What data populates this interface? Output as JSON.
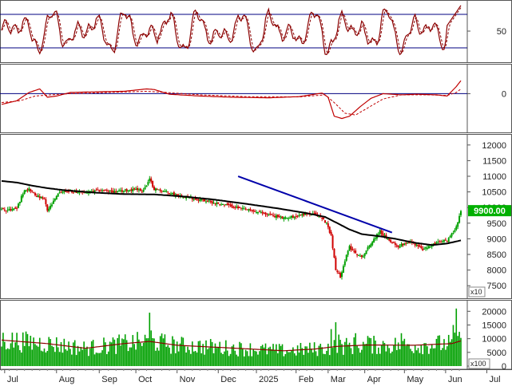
{
  "chart_data": [
    {
      "type": "line",
      "panel": "stochastic",
      "ylim": [
        0,
        100
      ],
      "yticks": [
        {
          "value": 50,
          "label": "50"
        }
      ],
      "reference_lines": [
        80,
        20
      ],
      "n_points": 260,
      "line_color": "#8b0000",
      "signal_color": "#8b0000",
      "ref_line_color": "#000080"
    },
    {
      "type": "line",
      "panel": "macd",
      "ylim": [
        -600,
        450
      ],
      "yticks": [
        {
          "value": 0,
          "label": "0"
        }
      ],
      "zero_line": 0,
      "macd_color": "#c00000",
      "signal_color": "#c00000"
    },
    {
      "type": "candlestick",
      "panel": "price",
      "ylim": [
        7200,
        12250
      ],
      "yticks": [
        {
          "value": 12000,
          "label": "12000"
        },
        {
          "value": 11500,
          "label": "11500"
        },
        {
          "value": 11000,
          "label": "11000"
        },
        {
          "value": 10500,
          "label": "10500"
        },
        {
          "value": 10000,
          "label": "10000"
        },
        {
          "value": 9500,
          "label": "9500"
        },
        {
          "value": 9000,
          "label": "9000"
        },
        {
          "value": 8500,
          "label": "8500"
        },
        {
          "value": 8000,
          "label": "8000"
        },
        {
          "value": 7500,
          "label": "7500"
        }
      ],
      "last_price_label": "9900.00",
      "unit_label": "x10",
      "up_color": "#00a000",
      "down_color": "#d00000",
      "ma_color": "#000000",
      "trendline_color": "#0000aa",
      "trendline": {
        "start": {
          "x": 155,
          "y": 11000
        },
        "end": {
          "x": 259,
          "y": 9200
        }
      },
      "price_path": [
        [
          0,
          9950
        ],
        [
          5,
          9920
        ],
        [
          10,
          9980
        ],
        [
          15,
          10580
        ],
        [
          18,
          10600
        ],
        [
          22,
          10400
        ],
        [
          28,
          10250
        ],
        [
          30,
          9900
        ],
        [
          33,
          10100
        ],
        [
          38,
          10500
        ],
        [
          45,
          10520
        ],
        [
          55,
          10480
        ],
        [
          65,
          10550
        ],
        [
          75,
          10500
        ],
        [
          82,
          10550
        ],
        [
          88,
          10600
        ],
        [
          92,
          10520
        ],
        [
          95,
          10700
        ],
        [
          97,
          10900
        ],
        [
          100,
          10600
        ],
        [
          108,
          10500
        ],
        [
          115,
          10400
        ],
        [
          125,
          10300
        ],
        [
          135,
          10200
        ],
        [
          145,
          10100
        ],
        [
          150,
          10050
        ],
        [
          158,
          9950
        ],
        [
          168,
          9850
        ],
        [
          178,
          9750
        ],
        [
          185,
          9650
        ],
        [
          192,
          9720
        ],
        [
          200,
          9800
        ],
        [
          205,
          9780
        ],
        [
          209,
          9700
        ],
        [
          213,
          9500
        ],
        [
          216,
          9100
        ],
        [
          219,
          8000
        ],
        [
          222,
          7800
        ],
        [
          225,
          8300
        ],
        [
          228,
          8750
        ],
        [
          232,
          8550
        ],
        [
          236,
          8400
        ],
        [
          240,
          8700
        ],
        [
          244,
          9000
        ],
        [
          248,
          9250
        ],
        [
          252,
          9000
        ],
        [
          256,
          8900
        ],
        [
          260,
          8750
        ],
        [
          264,
          8850
        ],
        [
          268,
          8900
        ],
        [
          272,
          8800
        ],
        [
          276,
          8650
        ],
        [
          280,
          8750
        ],
        [
          284,
          8850
        ],
        [
          288,
          8900
        ],
        [
          292,
          8950
        ],
        [
          296,
          9200
        ],
        [
          299,
          9550
        ],
        [
          301,
          9900
        ]
      ],
      "ma_path": [
        [
          0,
          10850
        ],
        [
          10,
          10800
        ],
        [
          20,
          10700
        ],
        [
          30,
          10620
        ],
        [
          40,
          10560
        ],
        [
          60,
          10480
        ],
        [
          80,
          10430
        ],
        [
          100,
          10420
        ],
        [
          120,
          10350
        ],
        [
          140,
          10250
        ],
        [
          160,
          10120
        ],
        [
          180,
          9980
        ],
        [
          200,
          9820
        ],
        [
          212,
          9700
        ],
        [
          220,
          9500
        ],
        [
          228,
          9300
        ],
        [
          236,
          9150
        ],
        [
          248,
          9080
        ],
        [
          258,
          9000
        ],
        [
          270,
          8880
        ],
        [
          282,
          8800
        ],
        [
          292,
          8850
        ],
        [
          301,
          8950
        ]
      ]
    },
    {
      "type": "bar",
      "panel": "volume",
      "ylim": [
        0,
        23000
      ],
      "yticks": [
        {
          "value": 20000,
          "label": "20000"
        },
        {
          "value": 15000,
          "label": "15000"
        },
        {
          "value": 10000,
          "label": "10000"
        },
        {
          "value": 5000,
          "label": "5000"
        },
        {
          "value": 0,
          "label": "0"
        }
      ],
      "unit_label": "x100",
      "bar_color": "#00a000",
      "ma_color": "#8b0000",
      "spikes": [
        {
          "x": 97,
          "value": 19500
        },
        {
          "x": 98,
          "value": 13000
        },
        {
          "x": 216,
          "value": 13500
        },
        {
          "x": 219,
          "value": 16000
        },
        {
          "x": 221,
          "value": 11500
        },
        {
          "x": 232,
          "value": 12000
        },
        {
          "x": 240,
          "value": 11000
        },
        {
          "x": 262,
          "value": 12000
        },
        {
          "x": 296,
          "value": 15000
        },
        {
          "x": 298,
          "value": 21000
        },
        {
          "x": 300,
          "value": 12500
        }
      ],
      "ma_path": [
        [
          0,
          9500
        ],
        [
          30,
          8200
        ],
        [
          55,
          6500
        ],
        [
          80,
          8200
        ],
        [
          97,
          9000
        ],
        [
          115,
          7600
        ],
        [
          150,
          6600
        ],
        [
          185,
          5600
        ],
        [
          205,
          6200
        ],
        [
          220,
          7200
        ],
        [
          240,
          7700
        ],
        [
          270,
          7600
        ],
        [
          295,
          8200
        ],
        [
          301,
          9200
        ]
      ]
    }
  ],
  "x_axis": {
    "date_labels": [
      {
        "label": "Jul",
        "x": 2
      },
      {
        "label": "Aug",
        "x": 36
      },
      {
        "label": "Sep",
        "x": 64
      },
      {
        "label": "Oct",
        "x": 88
      },
      {
        "label": "Nov",
        "x": 115
      },
      {
        "label": "Dec",
        "x": 142
      },
      {
        "label": "2025",
        "x": 167
      },
      {
        "label": "Feb",
        "x": 193
      },
      {
        "label": "Mar",
        "x": 214
      },
      {
        "label": "Apr",
        "x": 238
      },
      {
        "label": "May",
        "x": 264
      },
      {
        "label": "Jun",
        "x": 291
      },
      {
        "label": "Jul",
        "x": 318
      }
    ]
  }
}
